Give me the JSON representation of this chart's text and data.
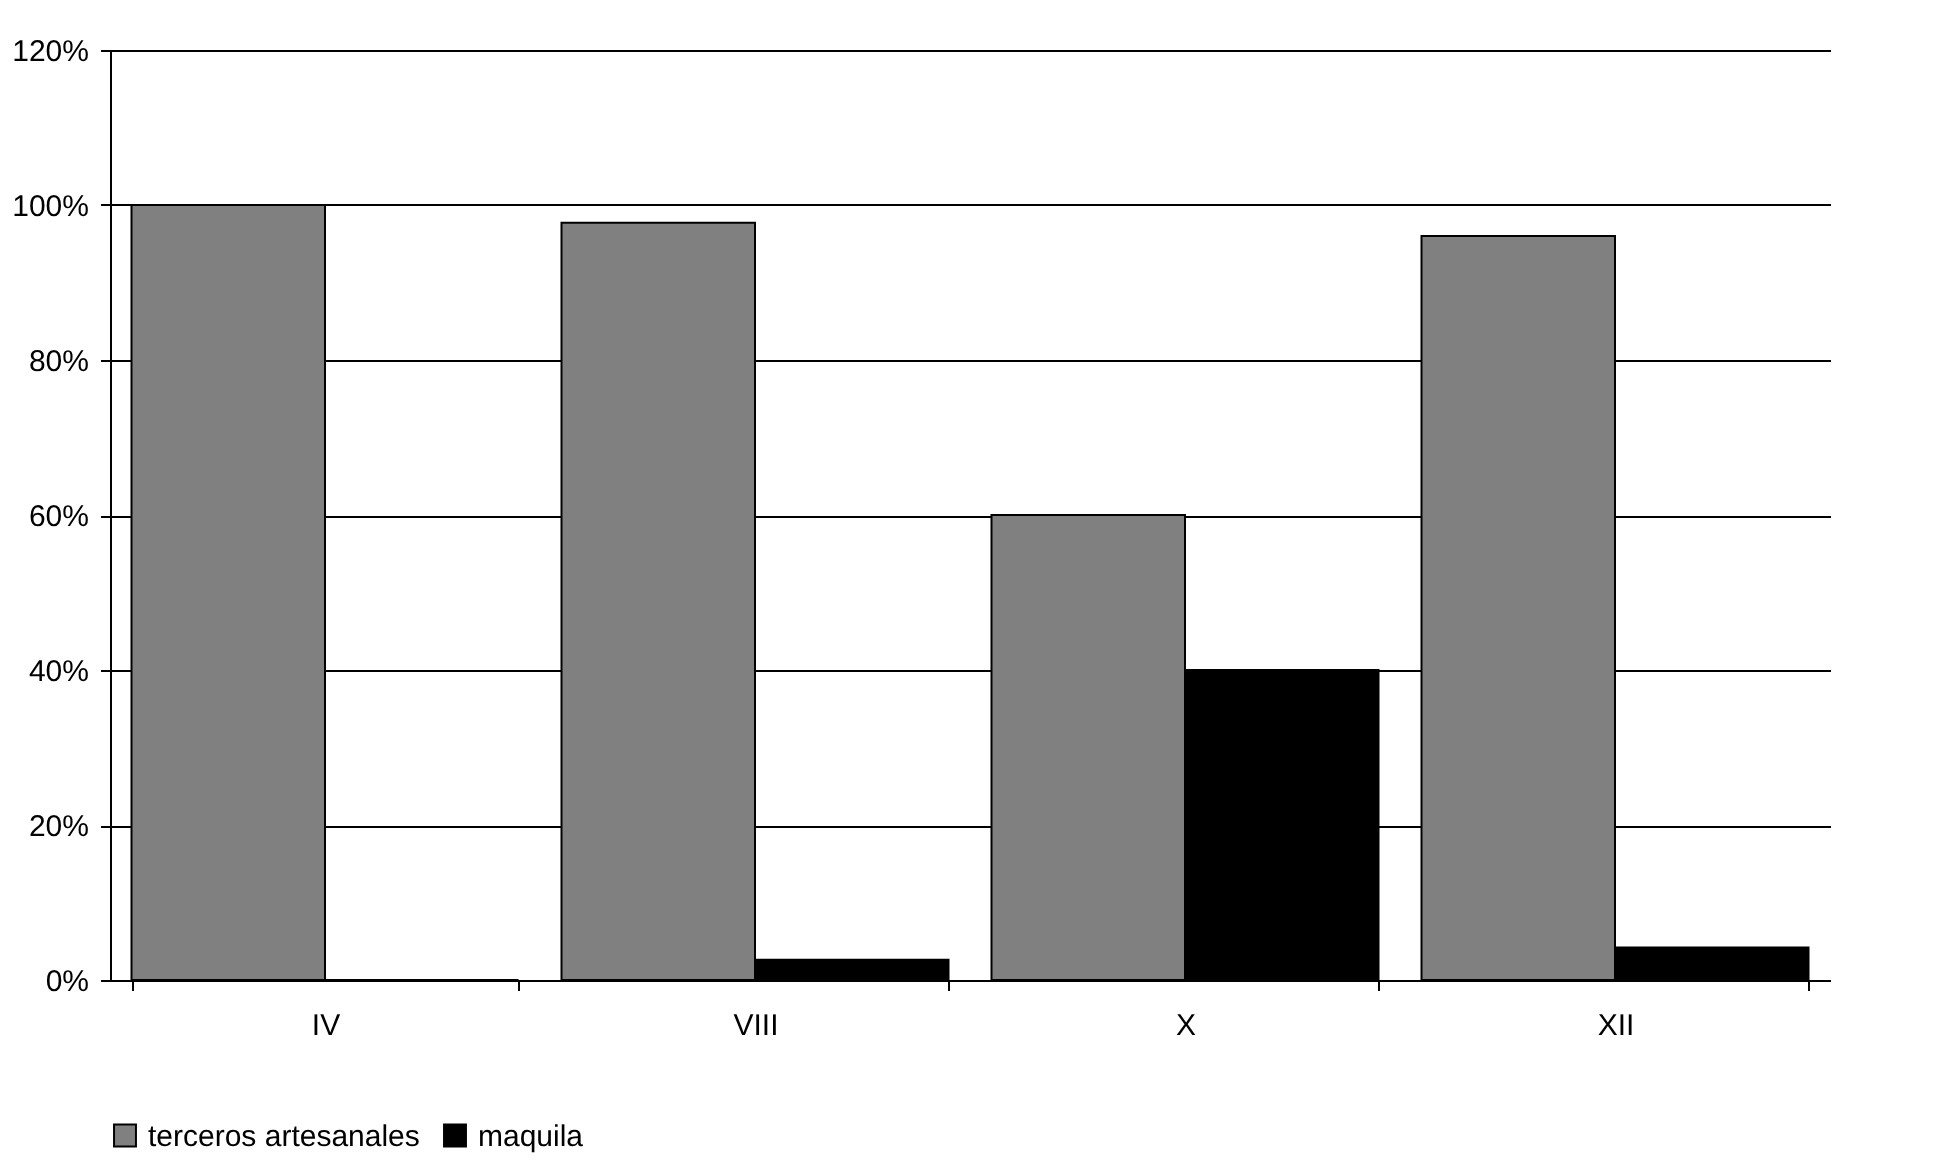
{
  "chart_data": {
    "type": "bar",
    "categories": [
      "IV",
      "VIII",
      "X",
      "XII"
    ],
    "series": [
      {
        "name": "terceros artesanales",
        "color": "#808080",
        "values": [
          100,
          97.7,
          60,
          96
        ]
      },
      {
        "name": "maquila",
        "color": "#000000",
        "values": [
          0,
          2.6,
          40,
          4.2
        ]
      }
    ],
    "ylim": [
      0,
      120
    ],
    "yticks": [
      {
        "value": 0,
        "label": "0%"
      },
      {
        "value": 20,
        "label": "20%"
      },
      {
        "value": 40,
        "label": "40%"
      },
      {
        "value": 60,
        "label": "60%"
      },
      {
        "value": 80,
        "label": "80%"
      },
      {
        "value": 100,
        "label": "100%"
      },
      {
        "value": 120,
        "label": "120%"
      }
    ],
    "grid": "y",
    "legend": "bottom"
  }
}
